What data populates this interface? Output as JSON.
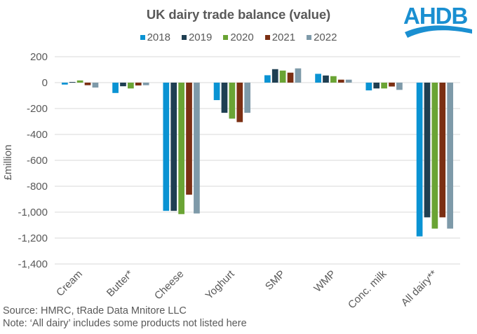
{
  "header": {
    "title": "UK dairy trade balance (value)",
    "logo_text": "AHDB"
  },
  "footer": {
    "source": "Source: HMRC, tRade Data Mnitore LLC",
    "note": "Note: ‘All dairy’ includes some products not listed here"
  },
  "chart_data": {
    "type": "bar",
    "title": "UK dairy trade balance (value)",
    "xlabel": "",
    "ylabel": "£million",
    "ylim": [
      -1400,
      200
    ],
    "yticks": [
      200,
      0,
      -200,
      -400,
      -600,
      -800,
      -1000,
      -1200,
      -1400
    ],
    "ytick_labels": [
      "200",
      "0",
      "-200",
      "-400",
      "-600",
      "-800",
      "-1,000",
      "-1,200",
      "-1,400"
    ],
    "grid": true,
    "legend_position": "top-center",
    "categories": [
      "Cream",
      "Butter*",
      "Cheese",
      "Yoghurt",
      "SMP",
      "WMP",
      "Conc. milk",
      "All dairy**"
    ],
    "series": [
      {
        "name": "2018",
        "color": "#0a93d3",
        "values": [
          -15,
          -80,
          -990,
          -135,
          57,
          68,
          -60,
          -1187
        ]
      },
      {
        "name": "2019",
        "color": "#1f3f52",
        "values": [
          5,
          -28,
          -990,
          -233,
          104,
          55,
          -45,
          -1040
        ]
      },
      {
        "name": "2020",
        "color": "#6aa434",
        "values": [
          17,
          -45,
          -1015,
          -278,
          93,
          50,
          -45,
          -1127
        ]
      },
      {
        "name": "2021",
        "color": "#7b2f13",
        "values": [
          -20,
          -22,
          -865,
          -305,
          77,
          23,
          -30,
          -1040
        ]
      },
      {
        "name": "2022",
        "color": "#7e9aa9",
        "values": [
          -38,
          -20,
          -1010,
          -233,
          110,
          23,
          -56,
          -1127
        ]
      }
    ]
  }
}
